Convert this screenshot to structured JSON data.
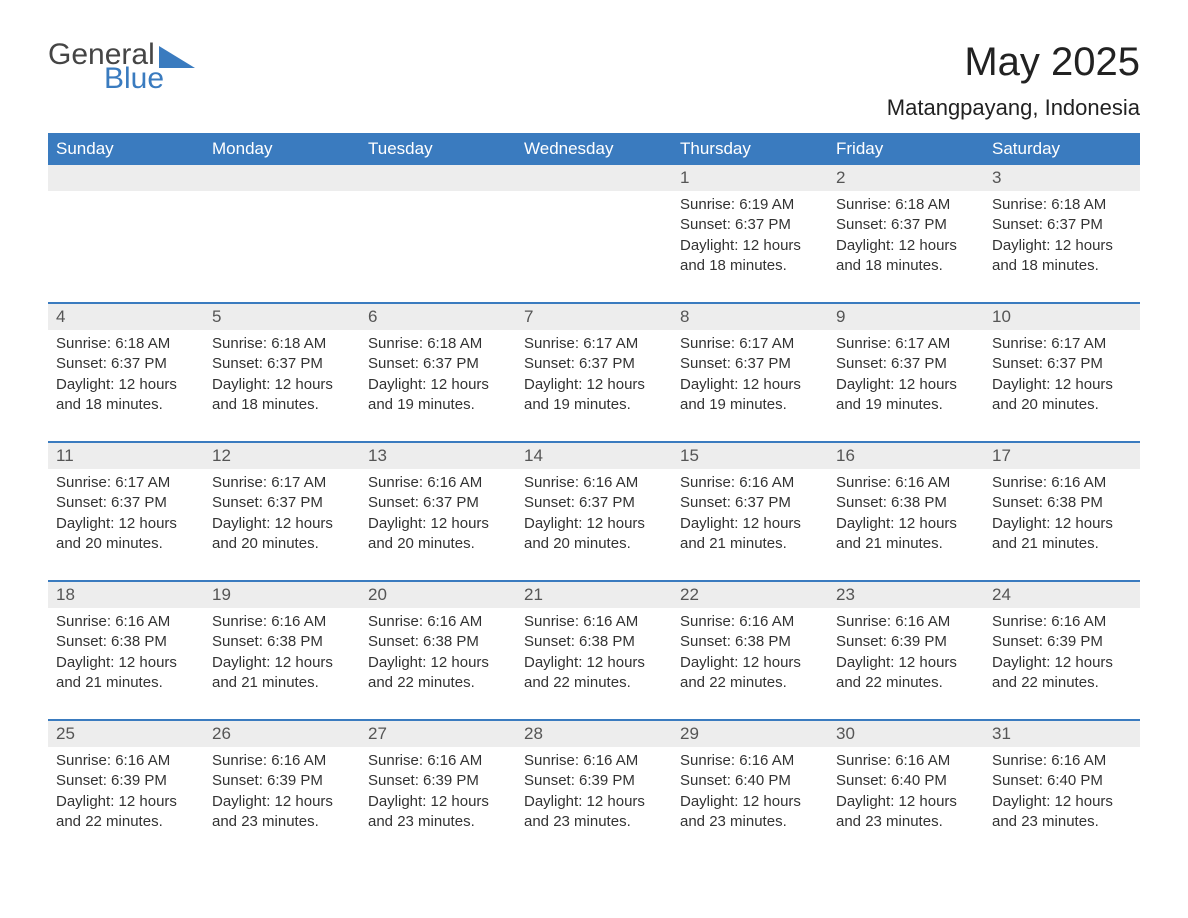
{
  "brand": {
    "part1": "General",
    "part2": "Blue"
  },
  "title": {
    "month": "May 2025",
    "location": "Matangpayang, Indonesia"
  },
  "colors": {
    "header_bg": "#3a7bbf",
    "header_text": "#ffffff",
    "daynum_bg": "#ededed",
    "row_divider": "#3a7bbf",
    "body_text": "#333333",
    "page_bg": "#ffffff"
  },
  "day_headers": [
    "Sunday",
    "Monday",
    "Tuesday",
    "Wednesday",
    "Thursday",
    "Friday",
    "Saturday"
  ],
  "weeks": [
    {
      "daynums": [
        "",
        "",
        "",
        "",
        "1",
        "2",
        "3"
      ],
      "cells": [
        {
          "sunrise": "",
          "sunset": "",
          "daylight": ""
        },
        {
          "sunrise": "",
          "sunset": "",
          "daylight": ""
        },
        {
          "sunrise": "",
          "sunset": "",
          "daylight": ""
        },
        {
          "sunrise": "",
          "sunset": "",
          "daylight": ""
        },
        {
          "sunrise": "Sunrise: 6:19 AM",
          "sunset": "Sunset: 6:37 PM",
          "daylight": "Daylight: 12 hours and 18 minutes."
        },
        {
          "sunrise": "Sunrise: 6:18 AM",
          "sunset": "Sunset: 6:37 PM",
          "daylight": "Daylight: 12 hours and 18 minutes."
        },
        {
          "sunrise": "Sunrise: 6:18 AM",
          "sunset": "Sunset: 6:37 PM",
          "daylight": "Daylight: 12 hours and 18 minutes."
        }
      ]
    },
    {
      "daynums": [
        "4",
        "5",
        "6",
        "7",
        "8",
        "9",
        "10"
      ],
      "cells": [
        {
          "sunrise": "Sunrise: 6:18 AM",
          "sunset": "Sunset: 6:37 PM",
          "daylight": "Daylight: 12 hours and 18 minutes."
        },
        {
          "sunrise": "Sunrise: 6:18 AM",
          "sunset": "Sunset: 6:37 PM",
          "daylight": "Daylight: 12 hours and 18 minutes."
        },
        {
          "sunrise": "Sunrise: 6:18 AM",
          "sunset": "Sunset: 6:37 PM",
          "daylight": "Daylight: 12 hours and 19 minutes."
        },
        {
          "sunrise": "Sunrise: 6:17 AM",
          "sunset": "Sunset: 6:37 PM",
          "daylight": "Daylight: 12 hours and 19 minutes."
        },
        {
          "sunrise": "Sunrise: 6:17 AM",
          "sunset": "Sunset: 6:37 PM",
          "daylight": "Daylight: 12 hours and 19 minutes."
        },
        {
          "sunrise": "Sunrise: 6:17 AM",
          "sunset": "Sunset: 6:37 PM",
          "daylight": "Daylight: 12 hours and 19 minutes."
        },
        {
          "sunrise": "Sunrise: 6:17 AM",
          "sunset": "Sunset: 6:37 PM",
          "daylight": "Daylight: 12 hours and 20 minutes."
        }
      ]
    },
    {
      "daynums": [
        "11",
        "12",
        "13",
        "14",
        "15",
        "16",
        "17"
      ],
      "cells": [
        {
          "sunrise": "Sunrise: 6:17 AM",
          "sunset": "Sunset: 6:37 PM",
          "daylight": "Daylight: 12 hours and 20 minutes."
        },
        {
          "sunrise": "Sunrise: 6:17 AM",
          "sunset": "Sunset: 6:37 PM",
          "daylight": "Daylight: 12 hours and 20 minutes."
        },
        {
          "sunrise": "Sunrise: 6:16 AM",
          "sunset": "Sunset: 6:37 PM",
          "daylight": "Daylight: 12 hours and 20 minutes."
        },
        {
          "sunrise": "Sunrise: 6:16 AM",
          "sunset": "Sunset: 6:37 PM",
          "daylight": "Daylight: 12 hours and 20 minutes."
        },
        {
          "sunrise": "Sunrise: 6:16 AM",
          "sunset": "Sunset: 6:37 PM",
          "daylight": "Daylight: 12 hours and 21 minutes."
        },
        {
          "sunrise": "Sunrise: 6:16 AM",
          "sunset": "Sunset: 6:38 PM",
          "daylight": "Daylight: 12 hours and 21 minutes."
        },
        {
          "sunrise": "Sunrise: 6:16 AM",
          "sunset": "Sunset: 6:38 PM",
          "daylight": "Daylight: 12 hours and 21 minutes."
        }
      ]
    },
    {
      "daynums": [
        "18",
        "19",
        "20",
        "21",
        "22",
        "23",
        "24"
      ],
      "cells": [
        {
          "sunrise": "Sunrise: 6:16 AM",
          "sunset": "Sunset: 6:38 PM",
          "daylight": "Daylight: 12 hours and 21 minutes."
        },
        {
          "sunrise": "Sunrise: 6:16 AM",
          "sunset": "Sunset: 6:38 PM",
          "daylight": "Daylight: 12 hours and 21 minutes."
        },
        {
          "sunrise": "Sunrise: 6:16 AM",
          "sunset": "Sunset: 6:38 PM",
          "daylight": "Daylight: 12 hours and 22 minutes."
        },
        {
          "sunrise": "Sunrise: 6:16 AM",
          "sunset": "Sunset: 6:38 PM",
          "daylight": "Daylight: 12 hours and 22 minutes."
        },
        {
          "sunrise": "Sunrise: 6:16 AM",
          "sunset": "Sunset: 6:38 PM",
          "daylight": "Daylight: 12 hours and 22 minutes."
        },
        {
          "sunrise": "Sunrise: 6:16 AM",
          "sunset": "Sunset: 6:39 PM",
          "daylight": "Daylight: 12 hours and 22 minutes."
        },
        {
          "sunrise": "Sunrise: 6:16 AM",
          "sunset": "Sunset: 6:39 PM",
          "daylight": "Daylight: 12 hours and 22 minutes."
        }
      ]
    },
    {
      "daynums": [
        "25",
        "26",
        "27",
        "28",
        "29",
        "30",
        "31"
      ],
      "cells": [
        {
          "sunrise": "Sunrise: 6:16 AM",
          "sunset": "Sunset: 6:39 PM",
          "daylight": "Daylight: 12 hours and 22 minutes."
        },
        {
          "sunrise": "Sunrise: 6:16 AM",
          "sunset": "Sunset: 6:39 PM",
          "daylight": "Daylight: 12 hours and 23 minutes."
        },
        {
          "sunrise": "Sunrise: 6:16 AM",
          "sunset": "Sunset: 6:39 PM",
          "daylight": "Daylight: 12 hours and 23 minutes."
        },
        {
          "sunrise": "Sunrise: 6:16 AM",
          "sunset": "Sunset: 6:39 PM",
          "daylight": "Daylight: 12 hours and 23 minutes."
        },
        {
          "sunrise": "Sunrise: 6:16 AM",
          "sunset": "Sunset: 6:40 PM",
          "daylight": "Daylight: 12 hours and 23 minutes."
        },
        {
          "sunrise": "Sunrise: 6:16 AM",
          "sunset": "Sunset: 6:40 PM",
          "daylight": "Daylight: 12 hours and 23 minutes."
        },
        {
          "sunrise": "Sunrise: 6:16 AM",
          "sunset": "Sunset: 6:40 PM",
          "daylight": "Daylight: 12 hours and 23 minutes."
        }
      ]
    }
  ]
}
